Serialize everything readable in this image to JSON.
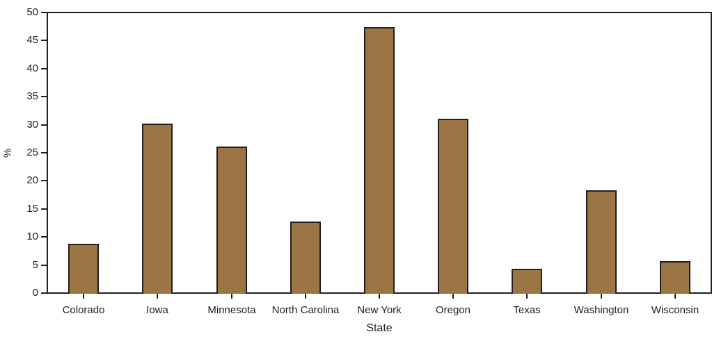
{
  "chart_data": {
    "type": "bar",
    "categories": [
      "Colorado",
      "Iowa",
      "Minnesota",
      "North Carolina",
      "New York",
      "Oregon",
      "Texas",
      "Washington",
      "Wisconsin"
    ],
    "values": [
      8.7,
      30.1,
      26.0,
      12.6,
      47.3,
      31.0,
      4.2,
      18.2,
      5.6
    ],
    "title": "",
    "xlabel": "State",
    "ylabel": "%",
    "ylim": [
      0,
      50
    ],
    "yticks": [
      0,
      5,
      10,
      15,
      20,
      25,
      30,
      35,
      40,
      45,
      50
    ],
    "grid": false,
    "legend": "none",
    "plot_border": "full-box",
    "colors": {
      "bar_fill": "#9C7544",
      "bar_border": "#231F20",
      "axis": "#231F20",
      "text": "#231F20",
      "background": "#FFFFFF"
    }
  }
}
